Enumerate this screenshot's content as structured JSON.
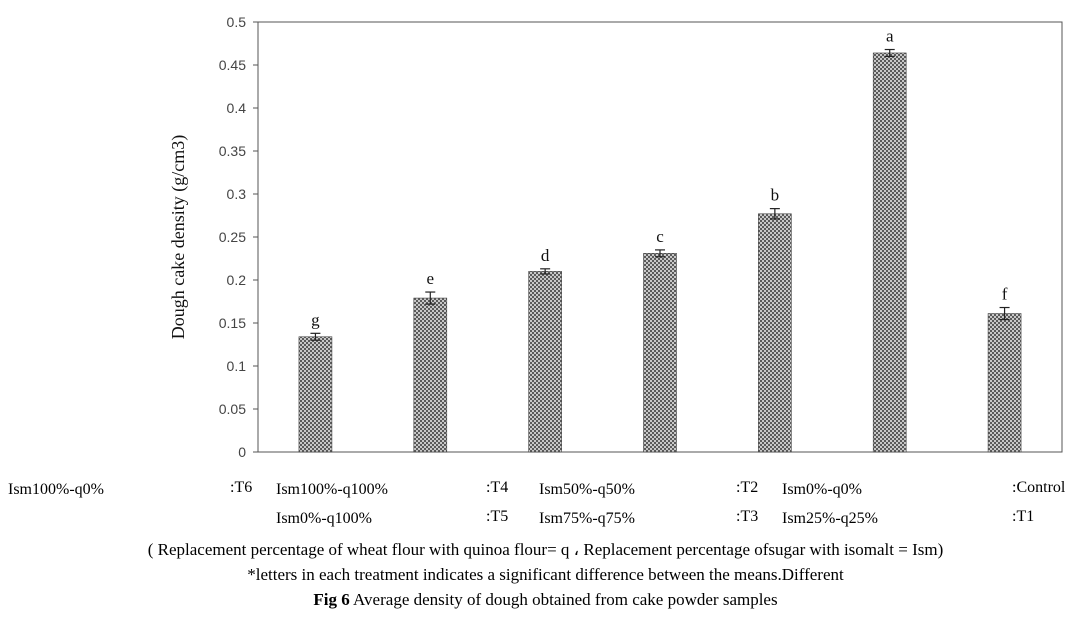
{
  "chart_data": {
    "type": "bar",
    "ylabel": "Dough cake density  (g/cm3)",
    "xlabel": "",
    "ylim": [
      0,
      0.5
    ],
    "yticks": [
      0,
      0.05,
      0.1,
      0.15,
      0.2,
      0.25,
      0.3,
      0.35,
      0.4,
      0.45,
      0.5
    ],
    "ytick_labels": [
      "0",
      "0.05",
      "0.1",
      "0.15",
      "0.2",
      "0.25",
      "0.3",
      "0.35",
      "0.4",
      "0.45",
      "0.5"
    ],
    "categories": [
      "Control",
      "T1",
      "T2",
      "T3",
      "T4",
      "T5",
      "T6"
    ],
    "values": [
      0.134,
      0.179,
      0.21,
      0.231,
      0.277,
      0.464,
      0.161
    ],
    "errors": [
      0.004,
      0.007,
      0.003,
      0.004,
      0.006,
      0.004,
      0.007
    ],
    "significance_letters": [
      "g",
      "e",
      "d",
      "c",
      "b",
      "a",
      "f"
    ],
    "grid": false,
    "bar_pattern": "crosshatch"
  },
  "legend": {
    "row1": [
      {
        "desc": "Ism100%-q0%",
        "key": ":T6"
      },
      {
        "desc": "Ism100%-q100%",
        "key": ":T4"
      },
      {
        "desc": "Ism50%-q50%",
        "key": ":T2"
      },
      {
        "desc": "Ism0%-q0%",
        "key": ":Control"
      }
    ],
    "row2": [
      {
        "desc": "Ism0%-q100%",
        "key": ":T5"
      },
      {
        "desc": "Ism75%-q75%",
        "key": ":T3"
      },
      {
        "desc": "Ism25%-q25%",
        "key": ":T1"
      }
    ]
  },
  "notes": {
    "replacement": "( Replacement percentage of wheat flour with quinoa flour= q ، Replacement percentage ofsugar with isomalt = Ism)",
    "letters": "*letters in each treatment indicates a significant difference between the means.Different"
  },
  "caption": {
    "label": "Fig 6",
    "text": "  Average density of dough obtained from cake powder samples"
  }
}
